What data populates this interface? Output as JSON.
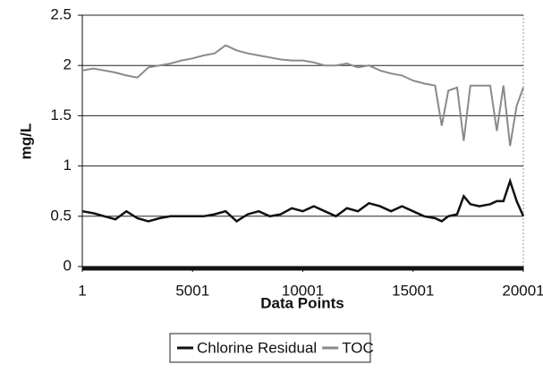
{
  "chart_data": {
    "type": "line",
    "x_label": "Data Points",
    "y_label": "mg/L",
    "x": [
      1,
      500,
      1000,
      1500,
      2000,
      2500,
      3000,
      3500,
      4000,
      4500,
      5000,
      5500,
      6000,
      6500,
      7000,
      7500,
      8000,
      8500,
      9000,
      9500,
      10000,
      10500,
      11000,
      11500,
      12000,
      12500,
      13000,
      13500,
      14000,
      14500,
      15000,
      15500,
      16000,
      16300,
      16600,
      17000,
      17300,
      17600,
      18000,
      18500,
      18800,
      19100,
      19400,
      19700,
      20001
    ],
    "series": [
      {
        "name": "Chlorine Residual",
        "color": "#111111",
        "values": [
          0.55,
          0.53,
          0.5,
          0.47,
          0.55,
          0.48,
          0.45,
          0.48,
          0.5,
          0.5,
          0.5,
          0.5,
          0.52,
          0.55,
          0.45,
          0.52,
          0.55,
          0.5,
          0.52,
          0.58,
          0.55,
          0.6,
          0.55,
          0.5,
          0.58,
          0.55,
          0.63,
          0.6,
          0.55,
          0.6,
          0.55,
          0.5,
          0.48,
          0.45,
          0.5,
          0.52,
          0.7,
          0.62,
          0.6,
          0.62,
          0.65,
          0.65,
          0.85,
          0.65,
          0.5
        ]
      },
      {
        "name": "TOC",
        "color": "#8a8a8a",
        "values": [
          1.95,
          1.97,
          1.95,
          1.93,
          1.9,
          1.88,
          1.98,
          2.0,
          2.02,
          2.05,
          2.07,
          2.1,
          2.12,
          2.2,
          2.15,
          2.12,
          2.1,
          2.08,
          2.06,
          2.05,
          2.05,
          2.03,
          2.0,
          2.0,
          2.02,
          1.98,
          2.0,
          1.95,
          1.92,
          1.9,
          1.85,
          1.82,
          1.8,
          1.4,
          1.75,
          1.78,
          1.25,
          1.8,
          1.8,
          1.8,
          1.35,
          1.8,
          1.2,
          1.6,
          1.78
        ]
      }
    ],
    "xlim": [
      1,
      20001
    ],
    "xticks": [
      1,
      5001,
      10001,
      15001,
      20001
    ],
    "ylim": [
      0,
      2.5
    ],
    "yticks": [
      0,
      0.5,
      1,
      1.5,
      2,
      2.5
    ],
    "grid": true,
    "legend": "bottom"
  }
}
